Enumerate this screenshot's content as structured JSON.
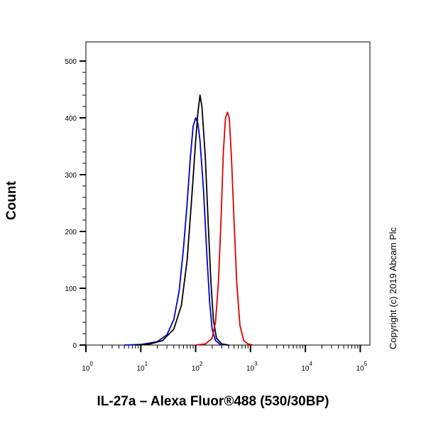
{
  "chart_data": {
    "type": "line",
    "subtype": "flow-cytometry-histogram",
    "xlabel": "IL-27a – Alexa Fluor®488 (530/30BP)",
    "ylabel": "Count",
    "xscale": "log",
    "xlim": [
      1,
      150000
    ],
    "ylim": [
      0,
      530
    ],
    "x_ticks": [
      {
        "base": "10",
        "exp": "0",
        "value": 1
      },
      {
        "base": "10",
        "exp": "1",
        "value": 10
      },
      {
        "base": "10",
        "exp": "2",
        "value": 100
      },
      {
        "base": "10",
        "exp": "3",
        "value": 1000
      },
      {
        "base": "10",
        "exp": "4",
        "value": 10000
      },
      {
        "base": "10",
        "exp": "5",
        "value": 100000
      }
    ],
    "y_ticks": [
      "0",
      "100",
      "200",
      "300",
      "400",
      "500"
    ],
    "y_tick_values": [
      0,
      100,
      200,
      300,
      400,
      500
    ],
    "grid": false,
    "legend": "none",
    "series": [
      {
        "color": "#0000cc",
        "points": [
          [
            5,
            0
          ],
          [
            10,
            1
          ],
          [
            20,
            6
          ],
          [
            30,
            18
          ],
          [
            40,
            45
          ],
          [
            50,
            95
          ],
          [
            60,
            170
          ],
          [
            70,
            250
          ],
          [
            80,
            330
          ],
          [
            90,
            385
          ],
          [
            100,
            400
          ],
          [
            110,
            390
          ],
          [
            120,
            360
          ],
          [
            140,
            270
          ],
          [
            160,
            160
          ],
          [
            180,
            75
          ],
          [
            200,
            28
          ],
          [
            230,
            8
          ],
          [
            280,
            1
          ],
          [
            400,
            0
          ]
        ]
      },
      {
        "color": "#000000",
        "points": [
          [
            8,
            0
          ],
          [
            15,
            2
          ],
          [
            25,
            8
          ],
          [
            40,
            28
          ],
          [
            55,
            70
          ],
          [
            70,
            150
          ],
          [
            85,
            260
          ],
          [
            100,
            360
          ],
          [
            110,
            410
          ],
          [
            120,
            440
          ],
          [
            130,
            420
          ],
          [
            150,
            330
          ],
          [
            170,
            210
          ],
          [
            190,
            110
          ],
          [
            210,
            45
          ],
          [
            240,
            12
          ],
          [
            300,
            2
          ],
          [
            400,
            0
          ]
        ]
      },
      {
        "color": "#dd0000",
        "points": [
          [
            100,
            0
          ],
          [
            150,
            2
          ],
          [
            200,
            12
          ],
          [
            230,
            40
          ],
          [
            260,
            110
          ],
          [
            290,
            220
          ],
          [
            320,
            340
          ],
          [
            350,
            400
          ],
          [
            380,
            410
          ],
          [
            410,
            400
          ],
          [
            450,
            330
          ],
          [
            500,
            220
          ],
          [
            560,
            110
          ],
          [
            640,
            35
          ],
          [
            750,
            8
          ],
          [
            900,
            2
          ],
          [
            1100,
            0
          ]
        ]
      }
    ]
  },
  "copyright": "Copyright (c) 2019 Abcam Plc"
}
